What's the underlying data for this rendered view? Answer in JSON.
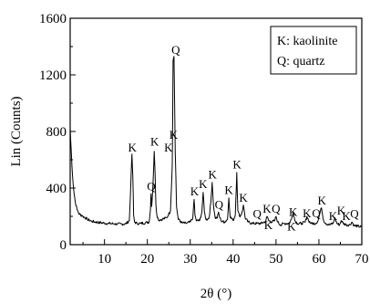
{
  "chart_data": {
    "type": "line",
    "xlabel": "2θ (°)",
    "ylabel": "Lin (Counts)",
    "xlim": [
      2,
      70
    ],
    "ylim": [
      0,
      1600
    ],
    "x_ticks": [
      10,
      20,
      30,
      40,
      50,
      60,
      70
    ],
    "y_ticks": [
      0,
      400,
      800,
      1200,
      1600
    ],
    "grid": false,
    "legend_position": "top-right",
    "legend": [
      {
        "key": "K",
        "text": "K: kaolinite"
      },
      {
        "key": "Q",
        "text": "Q: quartz"
      }
    ],
    "series": [
      {
        "x": [
          2.0,
          2.4,
          2.8,
          3.2,
          3.6,
          4.0,
          5.0,
          6.0,
          7.0,
          8.0,
          9.0,
          10.0,
          11.0,
          12.0,
          13.0,
          14.0,
          15.0,
          15.8,
          16.2,
          16.4,
          16.6,
          16.8,
          17.0,
          17.6,
          18.5,
          19.5,
          20.4,
          20.7,
          20.85,
          21.0,
          21.3,
          21.6,
          21.8,
          22.0,
          22.2,
          22.6,
          23.5,
          24.5,
          25.4,
          25.8,
          26.0,
          26.2,
          26.35,
          26.5,
          26.65,
          26.8,
          27.2,
          28.0,
          29.0,
          30.0,
          30.6,
          30.9,
          31.1,
          31.4,
          32.2,
          32.7,
          33.0,
          33.3,
          33.7,
          34.4,
          34.8,
          35.1,
          35.4,
          35.8,
          36.3,
          36.6,
          36.9,
          37.3,
          38.0,
          38.7,
          39.0,
          39.3,
          40.0,
          40.5,
          40.85,
          41.1,
          41.5,
          42.0,
          42.4,
          42.8,
          43.5,
          44.5,
          45.5,
          46.5,
          47.6,
          47.9,
          48.3,
          49.0,
          49.7,
          50.0,
          50.4,
          51.0,
          52.0,
          53.0,
          53.6,
          54.0,
          54.4,
          55.0,
          56.0,
          56.8,
          57.2,
          57.6,
          58.2,
          59.2,
          59.8,
          60.2,
          60.6,
          61.1,
          61.6,
          62.5,
          63.3,
          63.7,
          64.2,
          64.8,
          65.2,
          65.7,
          66.4,
          67.2,
          67.7,
          68.2,
          69.0,
          70.0
        ],
        "y": [
          820,
          560,
          390,
          300,
          250,
          220,
          200,
          180,
          165,
          160,
          155,
          152,
          150,
          148,
          146,
          145,
          148,
          170,
          480,
          640,
          490,
          210,
          160,
          150,
          150,
          155,
          160,
          240,
          360,
          270,
          420,
          660,
          500,
          280,
          210,
          175,
          180,
          190,
          240,
          560,
          1300,
          1330,
          1000,
          650,
          480,
          270,
          180,
          155,
          150,
          160,
          190,
          320,
          210,
          170,
          170,
          230,
          370,
          230,
          175,
          190,
          300,
          440,
          280,
          190,
          190,
          230,
          190,
          165,
          160,
          180,
          330,
          200,
          170,
          210,
          510,
          240,
          200,
          220,
          280,
          190,
          160,
          150,
          150,
          150,
          165,
          200,
          170,
          160,
          170,
          200,
          160,
          140,
          150,
          150,
          180,
          230,
          170,
          150,
          150,
          160,
          200,
          170,
          150,
          150,
          170,
          220,
          260,
          170,
          150,
          140,
          150,
          190,
          150,
          140,
          170,
          150,
          140,
          140,
          160,
          135,
          130,
          125
        ]
      }
    ],
    "annotations": [
      {
        "label": "K",
        "x": 16.5,
        "y": 640
      },
      {
        "label": "Q",
        "x": 20.9,
        "y": 365
      },
      {
        "label": "K",
        "x": 21.7,
        "y": 680
      },
      {
        "label": "K",
        "x": 24.9,
        "y": 640
      },
      {
        "label": "K",
        "x": 26.1,
        "y": 730
      },
      {
        "label": "Q",
        "x": 26.6,
        "y": 1330
      },
      {
        "label": "K",
        "x": 31.0,
        "y": 330
      },
      {
        "label": "K",
        "x": 33.0,
        "y": 380
      },
      {
        "label": "K",
        "x": 35.2,
        "y": 450
      },
      {
        "label": "Q",
        "x": 36.7,
        "y": 235
      },
      {
        "label": "K",
        "x": 39.0,
        "y": 340
      },
      {
        "label": "K",
        "x": 40.9,
        "y": 520
      },
      {
        "label": "K",
        "x": 42.4,
        "y": 285
      },
      {
        "label": "Q",
        "x": 45.6,
        "y": 170
      },
      {
        "label": "K",
        "x": 47.9,
        "y": 205
      },
      {
        "label": "K",
        "x": 48.2,
        "y": 90
      },
      {
        "label": "Q",
        "x": 50.0,
        "y": 205
      },
      {
        "label": "K",
        "x": 53.6,
        "y": 80
      },
      {
        "label": "K",
        "x": 54.0,
        "y": 185
      },
      {
        "label": "K",
        "x": 57.2,
        "y": 175
      },
      {
        "label": "Q",
        "x": 59.4,
        "y": 175
      },
      {
        "label": "K",
        "x": 60.7,
        "y": 265
      },
      {
        "label": "K",
        "x": 63.3,
        "y": 155
      },
      {
        "label": "K",
        "x": 65.2,
        "y": 195
      },
      {
        "label": "K",
        "x": 66.4,
        "y": 155
      },
      {
        "label": "Q",
        "x": 68.3,
        "y": 170
      }
    ]
  }
}
